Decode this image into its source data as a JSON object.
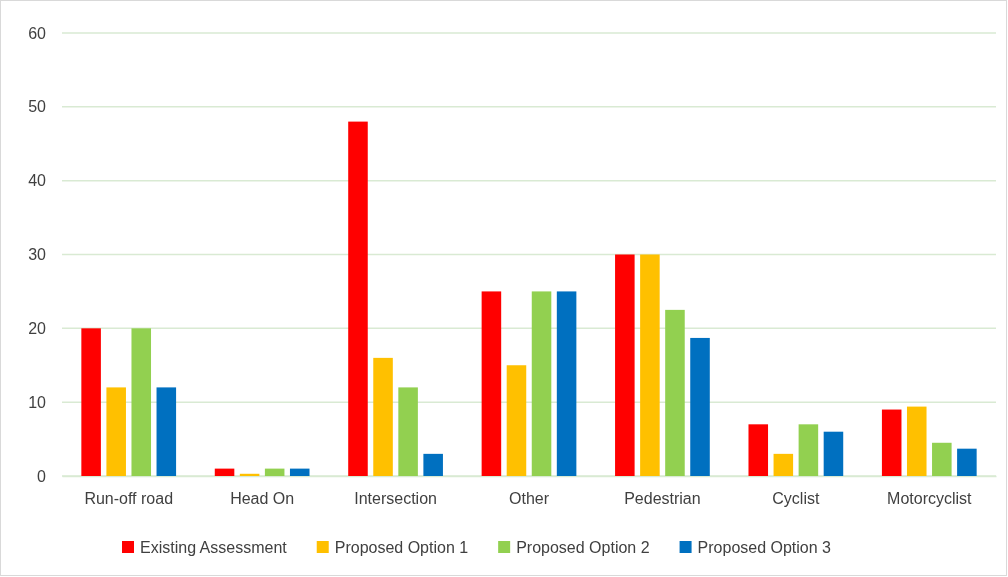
{
  "chart_data": {
    "type": "bar",
    "categories": [
      "Run-off road",
      "Head On",
      "Intersection",
      "Other",
      "Pedestrian",
      "Cyclist",
      "Motorcyclist"
    ],
    "series": [
      {
        "name": "Existing Assessment",
        "color": "#ff0000",
        "values": [
          20,
          1,
          48,
          25,
          30,
          7,
          9
        ]
      },
      {
        "name": "Proposed Option 1",
        "color": "#ffc000",
        "values": [
          12,
          0.3,
          16,
          15,
          30,
          3,
          9.4
        ]
      },
      {
        "name": "Proposed Option 2",
        "color": "#92d050",
        "values": [
          20,
          1,
          12,
          25,
          22.5,
          7,
          4.5
        ]
      },
      {
        "name": "Proposed Option 3",
        "color": "#0070c0",
        "values": [
          12,
          1,
          3,
          25,
          18.7,
          6,
          3.7
        ]
      }
    ],
    "ylim": [
      0,
      60
    ],
    "yticks": [
      0,
      10,
      20,
      30,
      40,
      50,
      60
    ],
    "grid": "y",
    "legend": "bottom"
  }
}
